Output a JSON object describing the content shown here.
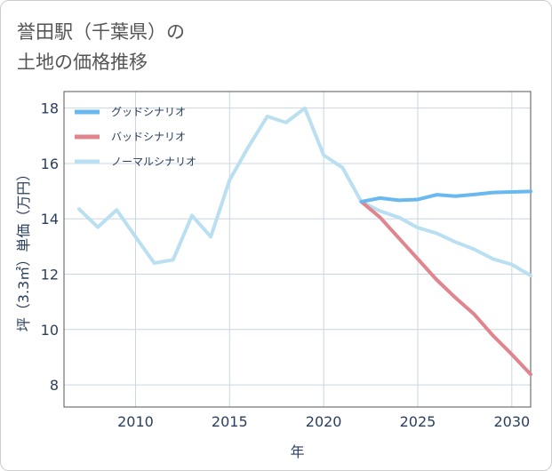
{
  "title_lines": [
    "誉田駅（千葉県）の",
    "土地の価格推移"
  ],
  "chart_data": {
    "type": "line",
    "xlabel": "年",
    "ylabel": "坪（3.3㎡）単価（万円）",
    "xlim": [
      2006.2,
      2031
    ],
    "ylim": [
      7.2,
      18.6
    ],
    "xticks": [
      2010,
      2015,
      2020,
      2025,
      2030
    ],
    "yticks": [
      8,
      10,
      12,
      14,
      16,
      18
    ],
    "grid": true,
    "legend_position": "top-left",
    "series": [
      {
        "name": "グッドシナリオ",
        "color": "#6ab8f0",
        "x": [
          2022,
          2023,
          2024,
          2025,
          2026,
          2027,
          2028,
          2029,
          2030,
          2031
        ],
        "y": [
          14.62,
          14.75,
          14.67,
          14.7,
          14.87,
          14.82,
          14.88,
          14.95,
          14.97,
          14.99
        ]
      },
      {
        "name": "バッドシナリオ",
        "color": "#e0848e",
        "x": [
          2022,
          2023,
          2024,
          2025,
          2026,
          2027,
          2028,
          2029,
          2030,
          2031
        ],
        "y": [
          14.62,
          14.05,
          13.3,
          12.55,
          11.8,
          11.15,
          10.55,
          9.78,
          9.1,
          8.38
        ]
      },
      {
        "name": "ノーマルシナリオ",
        "color": "#badff0",
        "x": [
          2007,
          2008,
          2009,
          2010,
          2011,
          2012,
          2013,
          2014,
          2015,
          2016,
          2017,
          2018,
          2019,
          2020,
          2021,
          2022,
          2023,
          2024,
          2025,
          2026,
          2027,
          2028,
          2029,
          2030,
          2031
        ],
        "y": [
          14.35,
          13.7,
          14.32,
          13.35,
          12.4,
          12.52,
          14.12,
          13.35,
          15.4,
          16.6,
          17.7,
          17.48,
          18.0,
          16.3,
          15.85,
          14.62,
          14.28,
          14.05,
          13.68,
          13.48,
          13.16,
          12.9,
          12.55,
          12.35,
          11.95
        ]
      }
    ]
  }
}
